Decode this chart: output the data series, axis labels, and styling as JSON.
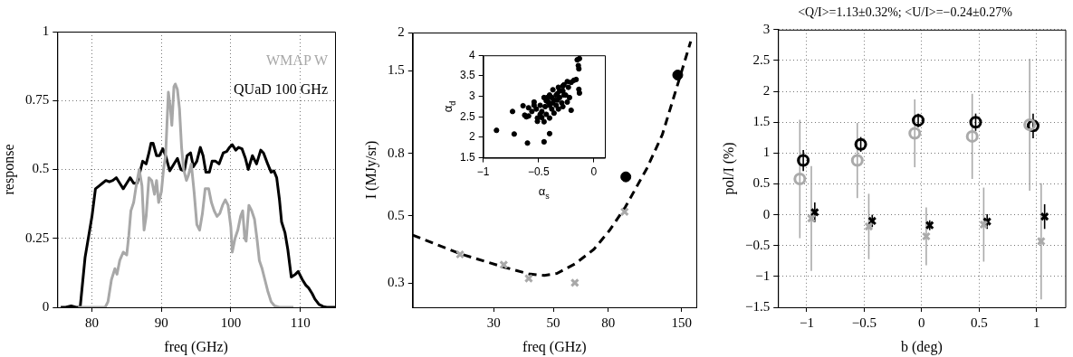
{
  "chart_data": [
    {
      "type": "line",
      "xlabel": "freq (GHz)",
      "ylabel": "response",
      "xlim": [
        75,
        115
      ],
      "xticks": [
        80,
        90,
        100,
        110
      ],
      "ylim": [
        0,
        1
      ],
      "yticks": [
        0,
        0.25,
        0.5,
        0.75,
        1
      ],
      "grid": true,
      "legend": "top right",
      "marker": "none",
      "line_style": "solid",
      "series": [
        {
          "name": "WMAP W",
          "color": "#a8a8a8",
          "x": [
            78,
            81.9,
            82.3,
            82.8,
            83.3,
            83.6,
            84,
            84.5,
            85,
            85.3,
            85.6,
            86,
            86.3,
            86.8,
            87.2,
            87.5,
            87.8,
            88.2,
            88.6,
            89,
            89.3,
            89.6,
            90,
            90.3,
            90.6,
            91,
            91.3,
            91.5,
            91.8,
            92,
            92.3,
            92.6,
            92.9,
            93.2,
            93.6,
            93.9,
            94.3,
            94.7,
            95.1,
            95.5,
            95.9,
            96.3,
            96.8,
            97.2,
            97.6,
            98,
            98.4,
            98.8,
            99.2,
            99.6,
            100,
            100.2,
            100.6,
            101,
            101.4,
            101.7,
            102,
            102.2,
            102.6,
            103,
            103.4,
            103.8,
            104.1,
            104.5,
            104.9,
            105.3,
            105.8,
            106.3,
            107,
            109
          ],
          "values": [
            0,
            0,
            0.02,
            0.1,
            0.14,
            0.12,
            0.17,
            0.2,
            0.19,
            0.26,
            0.35,
            0.38,
            0.43,
            0.5,
            0.44,
            0.28,
            0.33,
            0.47,
            0.46,
            0.41,
            0.46,
            0.38,
            0.42,
            0.5,
            0.55,
            0.78,
            0.72,
            0.66,
            0.8,
            0.81,
            0.79,
            0.72,
            0.58,
            0.5,
            0.46,
            0.48,
            0.52,
            0.42,
            0.3,
            0.28,
            0.34,
            0.43,
            0.43,
            0.38,
            0.35,
            0.33,
            0.34,
            0.37,
            0.39,
            0.37,
            0.29,
            0.2,
            0.25,
            0.28,
            0.33,
            0.35,
            0.25,
            0.24,
            0.37,
            0.35,
            0.32,
            0.24,
            0.17,
            0.14,
            0.1,
            0.06,
            0.02,
            0.005,
            0,
            0
          ]
        },
        {
          "name": "QUaD 100 GHz",
          "color": "#000000",
          "x": [
            75.5,
            76.2,
            77,
            77.7,
            78.3,
            79,
            80,
            80.5,
            81,
            81.5,
            82,
            82.5,
            83,
            83.5,
            84,
            84.5,
            85,
            85.5,
            86,
            86.5,
            87,
            87.3,
            87.8,
            88.2,
            88.5,
            88.8,
            89.3,
            89.7,
            90.2,
            90.6,
            91.2,
            91.8,
            92.3,
            92.8,
            93.3,
            93.7,
            94.2,
            94.6,
            95.1,
            95.6,
            96,
            96.4,
            96.9,
            97.3,
            97.8,
            98.3,
            98.9,
            99.4,
            99.8,
            100.2,
            100.7,
            101.1,
            101.6,
            102.1,
            102.5,
            103.1,
            103.7,
            104.3,
            104.7,
            105.3,
            105.8,
            106.2,
            106.6,
            107,
            107.3,
            107.8,
            108.2,
            108.7,
            109.3,
            109.7,
            110.3,
            110.8,
            111.2,
            111.7,
            112.1,
            112.7,
            113.3,
            113.8,
            115
          ],
          "values": [
            0,
            0,
            0.005,
            0,
            0,
            0.18,
            0.33,
            0.43,
            0.44,
            0.45,
            0.46,
            0.455,
            0.46,
            0.47,
            0.45,
            0.43,
            0.45,
            0.47,
            0.45,
            0.45,
            0.5,
            0.53,
            0.52,
            0.56,
            0.595,
            0.595,
            0.55,
            0.55,
            0.575,
            0.55,
            0.495,
            0.52,
            0.54,
            0.5,
            0.495,
            0.55,
            0.56,
            0.51,
            0.53,
            0.58,
            0.55,
            0.49,
            0.49,
            0.53,
            0.53,
            0.52,
            0.56,
            0.565,
            0.58,
            0.59,
            0.57,
            0.58,
            0.575,
            0.54,
            0.5,
            0.55,
            0.52,
            0.57,
            0.56,
            0.52,
            0.49,
            0.495,
            0.47,
            0.39,
            0.31,
            0.27,
            0.21,
            0.11,
            0.12,
            0.13,
            0.1,
            0.08,
            0.07,
            0.05,
            0.03,
            0.01,
            0.003,
            0,
            0
          ]
        }
      ]
    },
    {
      "type": "scatter",
      "xlabel": "freq (GHz)",
      "ylabel": "I (MJy/sr)",
      "log": "xy",
      "xlim": [
        15,
        170
      ],
      "xticks": [
        30,
        50,
        80,
        150
      ],
      "ylim": [
        0.25,
        2
      ],
      "yticks": [
        0.3,
        0.5,
        0.8,
        1.5,
        2
      ],
      "series": [
        {
          "type": "line",
          "color": "#000000",
          "marker": "none",
          "line_style": "dashed",
          "x": [
            15,
            22.5,
            32.7,
            40.5,
            46.3,
            51.6,
            60.4,
            70.8,
            80.8,
            92.5,
            111.4,
            127,
            145.3,
            162
          ],
          "values": [
            0.432,
            0.375,
            0.339,
            0.322,
            0.318,
            0.323,
            0.348,
            0.388,
            0.447,
            0.533,
            0.716,
            0.922,
            1.36,
            1.87
          ]
        },
        {
          "type": "scatter",
          "color": "#a8a8a8",
          "marker": "cross",
          "x": [
            22.5,
            32.7,
            40.5,
            60.1,
            92
          ],
          "values": [
            0.373,
            0.345,
            0.311,
            0.301,
            0.515
          ]
        },
        {
          "type": "scatter",
          "color": "#000000",
          "marker": "circle",
          "x": [
            93,
            145
          ],
          "values": [
            0.671,
            1.45
          ]
        }
      ]
    },
    {
      "type": "scatter",
      "xlabel": "α$_{s}$",
      "ylabel": "α$_{d}$",
      "xlim": [
        -1,
        0.1
      ],
      "xticks": [
        -1,
        -0.5,
        0
      ],
      "ylim": [
        1.5,
        4
      ],
      "yticks": [
        1.5,
        2,
        2.5,
        3,
        3.5,
        4
      ],
      "marker": "circle",
      "series": [
        {
          "color": "#000000",
          "x": [
            -0.88,
            -0.735,
            -0.72,
            -0.6,
            -0.45,
            -0.4,
            -0.64,
            -0.625,
            -0.59,
            -0.61,
            -0.59,
            -0.54,
            -0.52,
            -0.51,
            -0.51,
            -0.485,
            -0.47,
            -0.45,
            -0.44,
            -0.43,
            -0.41,
            -0.4,
            -0.38,
            -0.37,
            -0.36,
            -0.34,
            -0.33,
            -0.32,
            -0.31,
            -0.29,
            -0.28,
            -0.27,
            -0.255,
            -0.24,
            -0.23,
            -0.22,
            -0.205,
            -0.18,
            -0.16,
            -0.135,
            -0.13,
            -0.205,
            -0.24,
            -0.28,
            -0.32,
            -0.36,
            -0.4,
            -0.45,
            -0.47,
            -0.485,
            -0.43,
            -0.38,
            -0.34,
            -0.31,
            -0.28,
            -0.15,
            -0.13,
            -0.14,
            -0.135,
            -0.56,
            -0.54,
            -0.27,
            -0.33,
            -0.4,
            -0.42,
            -0.37
          ],
          "values": [
            2.17,
            2.63,
            2.08,
            1.86,
            1.89,
            2.09,
            2.77,
            2.54,
            2.52,
            2.5,
            2.72,
            2.86,
            2.69,
            2.47,
            2.39,
            2.78,
            2.63,
            2.97,
            2.75,
            2.56,
            2.86,
            3.03,
            2.69,
            3.16,
            2.91,
            2.78,
            3.06,
            3.22,
            2.97,
            2.84,
            3.13,
            3.28,
            3.03,
            3.36,
            3.22,
            2.97,
            3.34,
            3.39,
            3.41,
            3.17,
            3.08,
            2.66,
            2.86,
            2.75,
            2.69,
            2.59,
            2.47,
            2.38,
            2.48,
            2.56,
            2.89,
            2.97,
            3.03,
            3.13,
            3.25,
            3.89,
            3.92,
            3.75,
            3.67,
            2.63,
            2.78,
            3.03,
            2.91,
            2.78,
            2.97,
            2.84
          ]
        }
      ]
    },
    {
      "type": "scatter",
      "title": "<Q/I>=1.13±0.32%; <U/I>=−0.24±0.27%",
      "xlabel": "b (deg)",
      "ylabel": "pol/I (%)",
      "xlim": [
        -1.25,
        1.25
      ],
      "xticks": [
        -1,
        -0.5,
        0,
        0.5,
        1
      ],
      "ylim": [
        -1.5,
        3
      ],
      "yticks": [
        -1.5,
        -1,
        -0.5,
        0,
        0.5,
        1,
        1.5,
        2,
        2.5,
        3
      ],
      "grid": true,
      "series": [
        {
          "color": "#aaaaaa",
          "marker": "circle",
          "x": [
            -1.06,
            -0.56,
            -0.06,
            0.44,
            0.94
          ],
          "values": [
            0.58,
            0.88,
            1.32,
            1.27,
            1.46
          ],
          "errors": [
            0.96,
            0.61,
            0.55,
            0.69,
            1.07
          ]
        },
        {
          "color": "#aaaaaa",
          "marker": "cross",
          "x": [
            -0.96,
            -0.46,
            0.04,
            0.54,
            1.04
          ],
          "values": [
            -0.06,
            -0.19,
            -0.35,
            -0.16,
            -0.43
          ],
          "errors": [
            0.85,
            0.53,
            0.47,
            0.6,
            0.94
          ]
        },
        {
          "color": "#000000",
          "marker": "circle",
          "x": [
            -1.03,
            -0.53,
            -0.03,
            0.47,
            0.97
          ],
          "values": [
            0.88,
            1.14,
            1.53,
            1.5,
            1.44
          ],
          "errors": [
            0.17,
            0.12,
            0.11,
            0.14,
            0.2
          ]
        },
        {
          "color": "#000000",
          "marker": "cross",
          "x": [
            -0.93,
            -0.43,
            0.07,
            0.57,
            1.07
          ],
          "values": [
            0.04,
            -0.1,
            -0.17,
            -0.11,
            -0.03
          ],
          "errors": [
            0.16,
            0.1,
            0.08,
            0.12,
            0.2
          ]
        }
      ]
    }
  ]
}
